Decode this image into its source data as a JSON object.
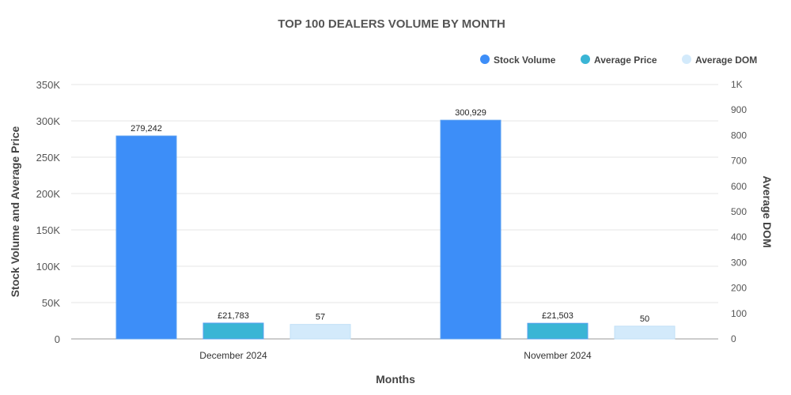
{
  "chart_data": {
    "type": "bar",
    "title": "TOP 100 DEALERS VOLUME BY MONTH",
    "xlabel": "Months",
    "ylabel": "Stock Volume and Average Price",
    "y2label": "Average DOM",
    "categories": [
      "December 2024",
      "November 2024"
    ],
    "ylim": [
      0,
      350000
    ],
    "y2lim": [
      0,
      1000
    ],
    "yticks": [
      "0",
      "50K",
      "100K",
      "150K",
      "200K",
      "250K",
      "300K",
      "350K"
    ],
    "y2ticks": [
      "0",
      "100",
      "200",
      "300",
      "400",
      "500",
      "600",
      "700",
      "800",
      "900",
      "1K"
    ],
    "series": [
      {
        "name": "Stock Volume",
        "axis": "left",
        "color": "#3d8ef8",
        "values": [
          279242,
          300929
        ],
        "labels": [
          "279,242",
          "300,929"
        ]
      },
      {
        "name": "Average Price",
        "axis": "left",
        "color": "#3ab5d5",
        "values": [
          21783,
          21503
        ],
        "labels": [
          "£21,783",
          "£21,503"
        ]
      },
      {
        "name": "Average DOM",
        "axis": "right",
        "color": "#d3eafb",
        "values": [
          57,
          50
        ],
        "labels": [
          "57",
          "50"
        ]
      }
    ],
    "legend_position": "top-right",
    "grid": true
  }
}
